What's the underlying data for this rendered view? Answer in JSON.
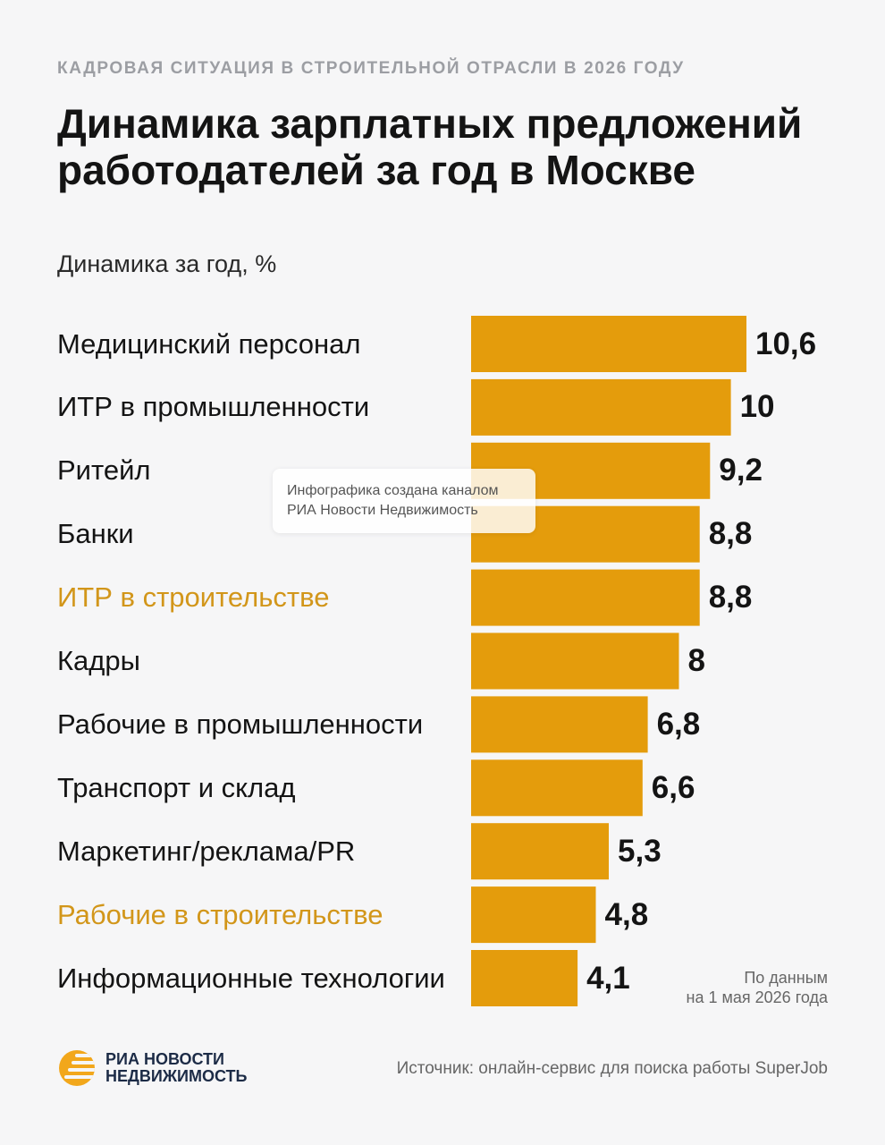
{
  "kicker": "КАДРОВАЯ СИТУАЦИЯ В СТРОИТЕЛЬНОЙ ОТРАСЛИ В 2026 ГОДУ",
  "title": "Динамика зарплатных предложений работодателей за год в Москве",
  "subtitle": "Динамика за год, %",
  "watermark": {
    "line1": "Инфографика создана каналом",
    "line2": "РИА Новости Недвижимость"
  },
  "note": {
    "line1": "По данным",
    "line2": "на 1 мая 2026 года"
  },
  "logo": {
    "line1": "РИА НОВОСТИ",
    "line2": "НЕДВИЖИМОСТЬ"
  },
  "source": "Источник: онлайн-сервис для поиска работы SuperJob",
  "colors": {
    "bar": "#e49c0c",
    "highlight_label": "#d2961a",
    "text": "#141414",
    "background": "#f6f6f7"
  },
  "chart_data": {
    "type": "bar",
    "orientation": "horizontal",
    "categories": [
      "Медицинский персонал",
      "ИТР в промышленности",
      "Ритейл",
      "Банки",
      "ИТР в строительстве",
      "Кадры",
      "Рабочие в промышленности",
      "Транспорт и склад",
      "Маркетинг/реклама/PR",
      "Рабочие в строительстве",
      "Информационные технологии"
    ],
    "values": [
      10.6,
      10,
      9.2,
      8.8,
      8.8,
      8,
      6.8,
      6.6,
      5.3,
      4.8,
      4.1
    ],
    "value_labels": [
      "10,6",
      "10",
      "9,2",
      "8,8",
      "8,8",
      "8",
      "6,8",
      "6,6",
      "5,3",
      "4,8",
      "4,1"
    ],
    "highlighted": [
      false,
      false,
      false,
      false,
      true,
      false,
      false,
      false,
      false,
      true,
      false
    ],
    "xlim": [
      0,
      10.6
    ],
    "grid": false,
    "legend": "none"
  }
}
